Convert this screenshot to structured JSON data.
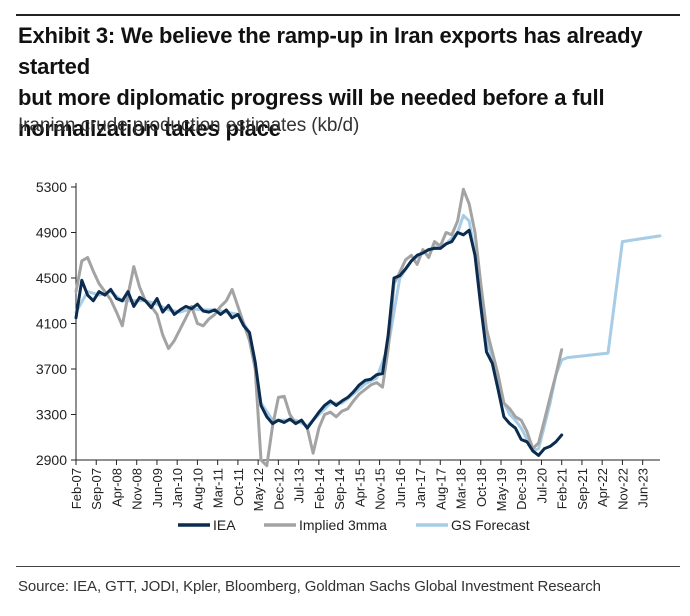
{
  "title": "Exhibit 3: We believe the ramp-up in Iran exports has already started\nbut more diplomatic progress will be needed before a full\nnormalization takes place",
  "subtitle": "Iranian crude production estimates (kb/d)",
  "source": "Source: IEA, GTT, JODI, Kpler, Bloomberg, Goldman Sachs Global Investment Research",
  "chart_data": {
    "type": "line",
    "title": "",
    "xlabel": "",
    "ylabel": "",
    "ylim": [
      2900,
      5300
    ],
    "yticks": [
      2900,
      3300,
      3700,
      4100,
      4500,
      4900,
      5300
    ],
    "xlim": [
      "2007-02",
      "2023-12"
    ],
    "xticks": [
      "Feb-07",
      "Sep-07",
      "Apr-08",
      "Nov-08",
      "Jun-09",
      "Jan-10",
      "Aug-10",
      "Mar-11",
      "Oct-11",
      "May-12",
      "Dec-12",
      "Jul-13",
      "Feb-14",
      "Sep-14",
      "Apr-15",
      "Nov-15",
      "Jun-16",
      "Jan-17",
      "Aug-17",
      "Mar-18",
      "Oct-18",
      "May-19",
      "Dec-19",
      "Jul-20",
      "Feb-21",
      "Sep-21",
      "Apr-22",
      "Nov-22",
      "Jun-23"
    ],
    "legend_position": "bottom",
    "grid": false,
    "series": [
      {
        "name": "IEA",
        "color": "#0b2c4f",
        "points": [
          [
            "2007-02",
            4150
          ],
          [
            "2007-04",
            4480
          ],
          [
            "2007-06",
            4350
          ],
          [
            "2007-08",
            4300
          ],
          [
            "2007-10",
            4380
          ],
          [
            "2007-12",
            4350
          ],
          [
            "2008-02",
            4400
          ],
          [
            "2008-04",
            4320
          ],
          [
            "2008-06",
            4300
          ],
          [
            "2008-08",
            4380
          ],
          [
            "2008-10",
            4250
          ],
          [
            "2008-12",
            4330
          ],
          [
            "2009-02",
            4300
          ],
          [
            "2009-04",
            4240
          ],
          [
            "2009-06",
            4320
          ],
          [
            "2009-08",
            4200
          ],
          [
            "2009-10",
            4260
          ],
          [
            "2009-12",
            4180
          ],
          [
            "2010-02",
            4220
          ],
          [
            "2010-04",
            4250
          ],
          [
            "2010-06",
            4230
          ],
          [
            "2010-08",
            4270
          ],
          [
            "2010-10",
            4210
          ],
          [
            "2010-12",
            4200
          ],
          [
            "2011-02",
            4220
          ],
          [
            "2011-04",
            4180
          ],
          [
            "2011-06",
            4220
          ],
          [
            "2011-08",
            4150
          ],
          [
            "2011-10",
            4180
          ],
          [
            "2011-12",
            4080
          ],
          [
            "2012-02",
            4020
          ],
          [
            "2012-04",
            3760
          ],
          [
            "2012-06",
            3380
          ],
          [
            "2012-08",
            3280
          ],
          [
            "2012-10",
            3220
          ],
          [
            "2012-12",
            3250
          ],
          [
            "2013-02",
            3230
          ],
          [
            "2013-04",
            3260
          ],
          [
            "2013-06",
            3220
          ],
          [
            "2013-08",
            3250
          ],
          [
            "2013-10",
            3180
          ],
          [
            "2013-12",
            3250
          ],
          [
            "2014-02",
            3320
          ],
          [
            "2014-04",
            3380
          ],
          [
            "2014-06",
            3420
          ],
          [
            "2014-08",
            3380
          ],
          [
            "2014-10",
            3420
          ],
          [
            "2014-12",
            3450
          ],
          [
            "2015-02",
            3500
          ],
          [
            "2015-04",
            3560
          ],
          [
            "2015-06",
            3600
          ],
          [
            "2015-08",
            3610
          ],
          [
            "2015-10",
            3650
          ],
          [
            "2015-12",
            3660
          ],
          [
            "2016-02",
            4000
          ],
          [
            "2016-04",
            4500
          ],
          [
            "2016-06",
            4520
          ],
          [
            "2016-08",
            4580
          ],
          [
            "2016-10",
            4650
          ],
          [
            "2016-12",
            4700
          ],
          [
            "2017-02",
            4720
          ],
          [
            "2017-04",
            4750
          ],
          [
            "2017-06",
            4760
          ],
          [
            "2017-08",
            4760
          ],
          [
            "2017-10",
            4800
          ],
          [
            "2017-12",
            4820
          ],
          [
            "2018-02",
            4900
          ],
          [
            "2018-04",
            4880
          ],
          [
            "2018-06",
            4920
          ],
          [
            "2018-08",
            4700
          ],
          [
            "2018-10",
            4250
          ],
          [
            "2018-12",
            3850
          ],
          [
            "2019-02",
            3750
          ],
          [
            "2019-04",
            3520
          ],
          [
            "2019-06",
            3280
          ],
          [
            "2019-08",
            3220
          ],
          [
            "2019-10",
            3180
          ],
          [
            "2019-12",
            3080
          ],
          [
            "2020-02",
            3060
          ],
          [
            "2020-04",
            2980
          ],
          [
            "2020-06",
            2940
          ],
          [
            "2020-08",
            3000
          ],
          [
            "2020-10",
            3020
          ],
          [
            "2020-12",
            3060
          ],
          [
            "2021-02",
            3120
          ]
        ]
      },
      {
        "name": "Implied 3mma",
        "color": "#a3a3a3",
        "points": [
          [
            "2007-02",
            4380
          ],
          [
            "2007-04",
            4650
          ],
          [
            "2007-06",
            4680
          ],
          [
            "2007-08",
            4560
          ],
          [
            "2007-10",
            4450
          ],
          [
            "2007-12",
            4380
          ],
          [
            "2008-02",
            4310
          ],
          [
            "2008-04",
            4200
          ],
          [
            "2008-06",
            4080
          ],
          [
            "2008-08",
            4350
          ],
          [
            "2008-10",
            4600
          ],
          [
            "2008-12",
            4420
          ],
          [
            "2009-02",
            4300
          ],
          [
            "2009-04",
            4250
          ],
          [
            "2009-06",
            4180
          ],
          [
            "2009-08",
            4000
          ],
          [
            "2009-10",
            3880
          ],
          [
            "2009-12",
            3950
          ],
          [
            "2010-02",
            4050
          ],
          [
            "2010-04",
            4150
          ],
          [
            "2010-06",
            4250
          ],
          [
            "2010-08",
            4100
          ],
          [
            "2010-10",
            4080
          ],
          [
            "2010-12",
            4140
          ],
          [
            "2011-02",
            4180
          ],
          [
            "2011-04",
            4250
          ],
          [
            "2011-06",
            4300
          ],
          [
            "2011-08",
            4400
          ],
          [
            "2011-10",
            4250
          ],
          [
            "2011-12",
            4100
          ],
          [
            "2012-02",
            3950
          ],
          [
            "2012-04",
            3700
          ],
          [
            "2012-06",
            2900
          ],
          [
            "2012-08",
            2850
          ],
          [
            "2012-10",
            3200
          ],
          [
            "2012-12",
            3450
          ],
          [
            "2013-02",
            3460
          ],
          [
            "2013-04",
            3300
          ],
          [
            "2013-06",
            3220
          ],
          [
            "2013-08",
            3250
          ],
          [
            "2013-10",
            3180
          ],
          [
            "2013-12",
            2960
          ],
          [
            "2014-02",
            3180
          ],
          [
            "2014-04",
            3300
          ],
          [
            "2014-06",
            3320
          ],
          [
            "2014-08",
            3280
          ],
          [
            "2014-10",
            3330
          ],
          [
            "2014-12",
            3350
          ],
          [
            "2015-02",
            3420
          ],
          [
            "2015-04",
            3480
          ],
          [
            "2015-06",
            3520
          ],
          [
            "2015-08",
            3560
          ],
          [
            "2015-10",
            3580
          ],
          [
            "2015-12",
            3540
          ],
          [
            "2016-02",
            3880
          ],
          [
            "2016-04",
            4450
          ],
          [
            "2016-06",
            4550
          ],
          [
            "2016-08",
            4660
          ],
          [
            "2016-10",
            4700
          ],
          [
            "2016-12",
            4620
          ],
          [
            "2017-02",
            4750
          ],
          [
            "2017-04",
            4680
          ],
          [
            "2017-06",
            4820
          ],
          [
            "2017-08",
            4780
          ],
          [
            "2017-10",
            4900
          ],
          [
            "2017-12",
            4880
          ],
          [
            "2018-02",
            5000
          ],
          [
            "2018-04",
            5280
          ],
          [
            "2018-06",
            5150
          ],
          [
            "2018-08",
            4900
          ],
          [
            "2018-10",
            4450
          ],
          [
            "2018-12",
            4050
          ],
          [
            "2019-02",
            3850
          ],
          [
            "2019-04",
            3650
          ],
          [
            "2019-06",
            3400
          ],
          [
            "2019-08",
            3350
          ],
          [
            "2019-10",
            3280
          ],
          [
            "2019-12",
            3250
          ],
          [
            "2020-02",
            3150
          ],
          [
            "2020-04",
            3000
          ],
          [
            "2020-06",
            3050
          ],
          [
            "2020-08",
            3250
          ],
          [
            "2020-10",
            3450
          ],
          [
            "2020-12",
            3650
          ],
          [
            "2021-02",
            3870
          ]
        ]
      },
      {
        "name": "GS Forecast",
        "color": "#a6cce6",
        "points": [
          [
            "2007-02",
            4200
          ],
          [
            "2007-06",
            4380
          ],
          [
            "2007-10",
            4350
          ],
          [
            "2008-02",
            4380
          ],
          [
            "2008-06",
            4300
          ],
          [
            "2008-10",
            4300
          ],
          [
            "2009-02",
            4300
          ],
          [
            "2009-06",
            4270
          ],
          [
            "2009-10",
            4220
          ],
          [
            "2010-02",
            4200
          ],
          [
            "2010-06",
            4230
          ],
          [
            "2010-10",
            4220
          ],
          [
            "2011-02",
            4220
          ],
          [
            "2011-06",
            4200
          ],
          [
            "2011-10",
            4180
          ],
          [
            "2012-02",
            4020
          ],
          [
            "2012-06",
            3400
          ],
          [
            "2012-10",
            3250
          ],
          [
            "2013-02",
            3250
          ],
          [
            "2013-06",
            3250
          ],
          [
            "2013-10",
            3200
          ],
          [
            "2014-02",
            3300
          ],
          [
            "2014-06",
            3400
          ],
          [
            "2014-10",
            3400
          ],
          [
            "2015-02",
            3480
          ],
          [
            "2015-06",
            3570
          ],
          [
            "2015-10",
            3620
          ],
          [
            "2016-02",
            3900
          ],
          [
            "2016-06",
            4500
          ],
          [
            "2016-10",
            4650
          ],
          [
            "2017-02",
            4720
          ],
          [
            "2017-06",
            4770
          ],
          [
            "2017-10",
            4800
          ],
          [
            "2018-02",
            4900
          ],
          [
            "2018-04",
            5050
          ],
          [
            "2018-06",
            5000
          ],
          [
            "2018-08",
            4700
          ],
          [
            "2018-10",
            4300
          ],
          [
            "2018-12",
            3950
          ],
          [
            "2019-02",
            3800
          ],
          [
            "2019-04",
            3600
          ],
          [
            "2019-06",
            3400
          ],
          [
            "2019-08",
            3300
          ],
          [
            "2019-10",
            3250
          ],
          [
            "2019-12",
            3180
          ],
          [
            "2020-02",
            3080
          ],
          [
            "2020-04",
            2980
          ],
          [
            "2020-06",
            3000
          ],
          [
            "2020-08",
            3200
          ],
          [
            "2020-10",
            3400
          ],
          [
            "2020-12",
            3650
          ],
          [
            "2021-02",
            3780
          ],
          [
            "2021-04",
            3800
          ],
          [
            "2022-06",
            3840
          ],
          [
            "2022-11",
            4820
          ],
          [
            "2023-12",
            4870
          ]
        ]
      }
    ]
  }
}
